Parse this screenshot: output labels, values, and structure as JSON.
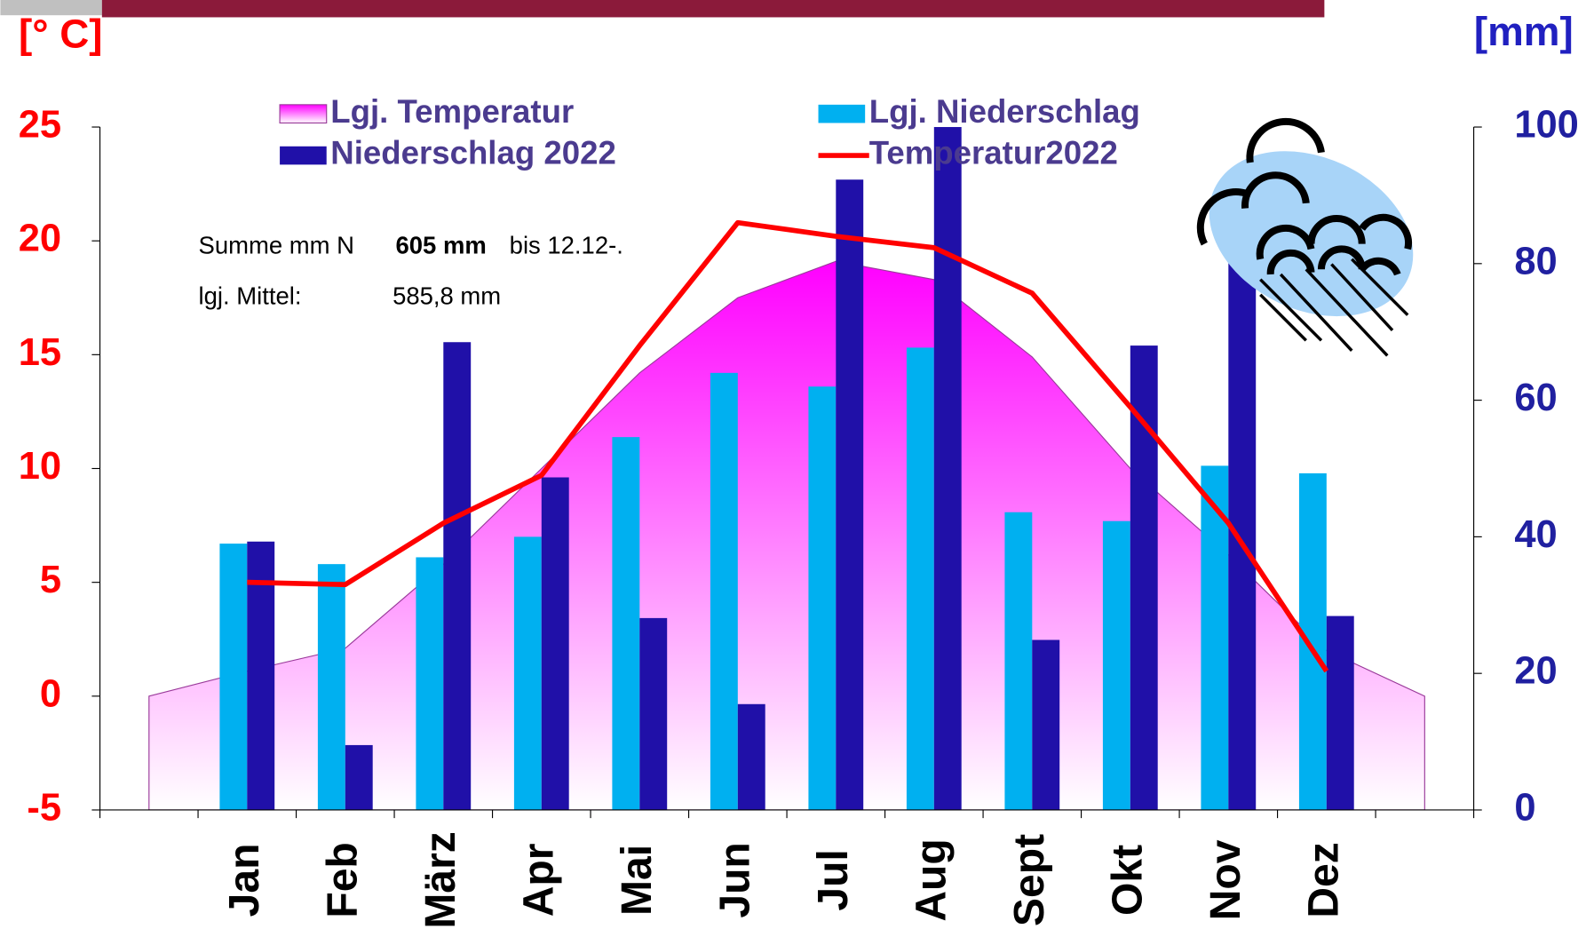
{
  "chart_data": {
    "type": "bar",
    "y_label": "[° C]",
    "y2_label": "[mm]",
    "categories": [
      null,
      "Jan",
      "Feb",
      "März",
      "Apr",
      "Mai",
      "Jun",
      "Jul",
      "Aug",
      "Sept",
      "Okt",
      "Nov",
      "Dez",
      null
    ],
    "series": [
      {
        "name": "Lgj. Temperatur",
        "type": "area",
        "color": "#ff00ff",
        "values": [
          0,
          1.1,
          2.1,
          5.8,
          10.0,
          14.2,
          17.5,
          19.1,
          18.3,
          14.9,
          10.0,
          6.2,
          2.0,
          0
        ]
      },
      {
        "name": "Lgj. Niederschlag",
        "type": "bar",
        "axis": "y2",
        "color": "#00b0f0",
        "values": [
          null,
          39,
          36,
          37,
          40,
          54.6,
          64,
          62,
          67.7,
          43.6,
          42.3,
          50.4,
          49.3,
          null
        ]
      },
      {
        "name": "Niederschlag 2022",
        "type": "bar",
        "axis": "y2",
        "color": "#2010a8",
        "values": [
          null,
          39.3,
          9.5,
          68.5,
          48.7,
          28.1,
          15.5,
          92.3,
          100,
          24.9,
          68,
          81.5,
          28.4,
          null
        ]
      },
      {
        "name": "Temperatur2022",
        "type": "line",
        "color": "#ff0000",
        "values": [
          null,
          5.0,
          4.9,
          7.6,
          9.7,
          15.4,
          20.8,
          20.2,
          19.7,
          17.7,
          12.7,
          7.6,
          1.1,
          null
        ]
      }
    ],
    "ylim": [
      -5,
      25
    ],
    "yticks": [
      -5,
      0,
      5,
      10,
      15,
      20,
      25
    ],
    "y2lim": [
      0,
      100
    ],
    "y2ticks": [
      0,
      20,
      40,
      60,
      80,
      100
    ],
    "annotations": [
      "Summe mm N",
      "605 mm",
      "bis 12.12-.",
      "lgj. Mittel:",
      "585,8 mm"
    ]
  }
}
